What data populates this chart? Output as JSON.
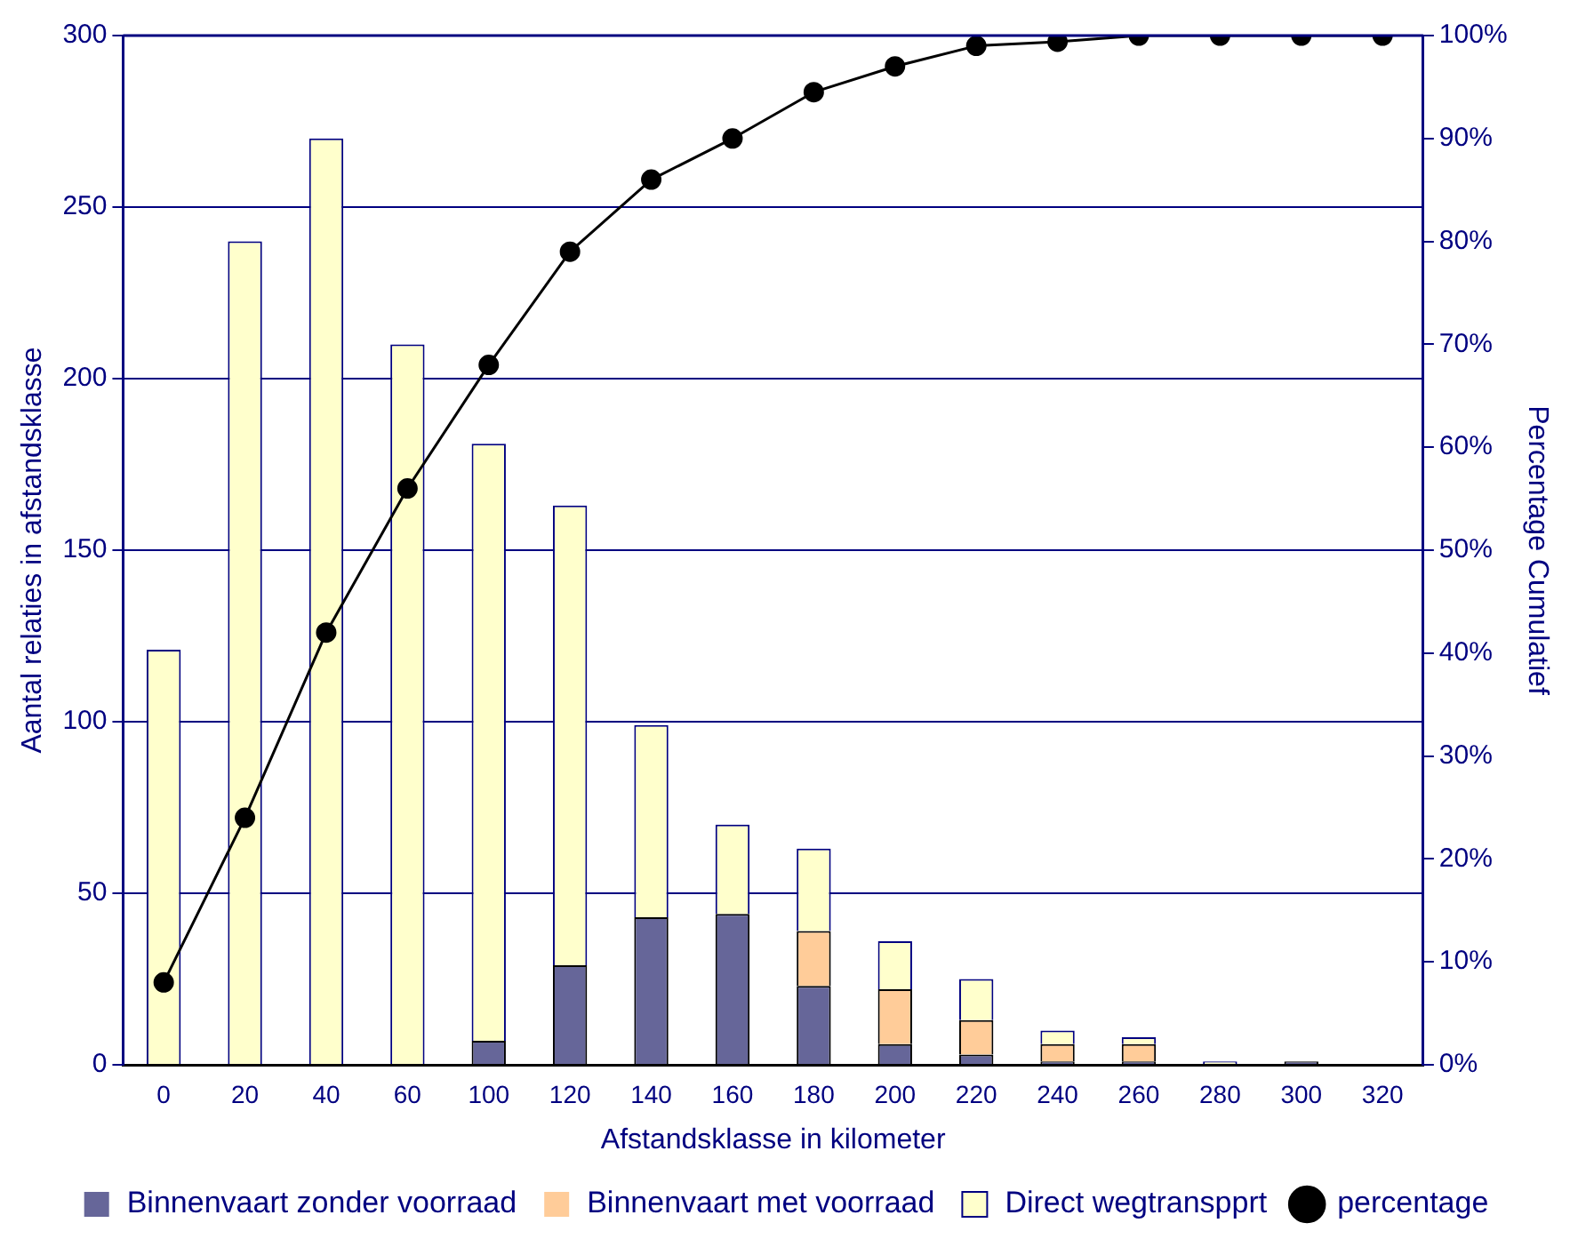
{
  "chart_data": {
    "type": "bar",
    "stacked": true,
    "xlabel": "Afstandsklasse in kilometer",
    "ylabel": "Aantal relaties in afstandsklasse",
    "y2label": "Percentage Cumulatief",
    "categories": [
      "0",
      "20",
      "40",
      "60",
      "100",
      "120",
      "140",
      "160",
      "180",
      "200",
      "220",
      "240",
      "260",
      "280",
      "300",
      "320"
    ],
    "series": [
      {
        "name": "Binnenvaart zonder voorraad",
        "color": "#666699",
        "values": [
          0,
          0,
          0,
          0,
          7,
          29,
          43,
          44,
          23,
          6,
          3,
          1,
          1,
          0,
          1,
          0
        ]
      },
      {
        "name": "Binnenvaart met voorraad",
        "color": "#ffcc99",
        "values": [
          0,
          0,
          0,
          0,
          0,
          0,
          0,
          0,
          16,
          16,
          10,
          5,
          5,
          0,
          0,
          0
        ]
      },
      {
        "name": "Direct wegtranspprt",
        "color": "#ffffcc",
        "values": [
          121,
          240,
          270,
          210,
          174,
          134,
          56,
          26,
          24,
          14,
          12,
          4,
          2,
          1,
          0,
          0
        ]
      },
      {
        "name": "percentage",
        "type": "line",
        "axis": "y2",
        "color": "#000000",
        "marker": "circle",
        "values": [
          8,
          24,
          42,
          56,
          68,
          79,
          86,
          90,
          94.5,
          97,
          99,
          99.4,
          100,
          100,
          100,
          100
        ]
      }
    ],
    "ylim": [
      0,
      300
    ],
    "yticks": [
      0,
      50,
      100,
      150,
      200,
      250,
      300
    ],
    "y2lim": [
      0,
      100
    ],
    "y2ticks": [
      {
        "value": 0,
        "label": "0%"
      },
      {
        "value": 10,
        "label": "10%"
      },
      {
        "value": 20,
        "label": "20%"
      },
      {
        "value": 30,
        "label": "30%"
      },
      {
        "value": 40,
        "label": "40%"
      },
      {
        "value": 50,
        "label": "50%"
      },
      {
        "value": 60,
        "label": "60%"
      },
      {
        "value": 70,
        "label": "70%"
      },
      {
        "value": 80,
        "label": "80%"
      },
      {
        "value": 90,
        "label": "90%"
      },
      {
        "value": 100,
        "label": "100%"
      }
    ],
    "grid": "y",
    "legend": "bottom"
  }
}
